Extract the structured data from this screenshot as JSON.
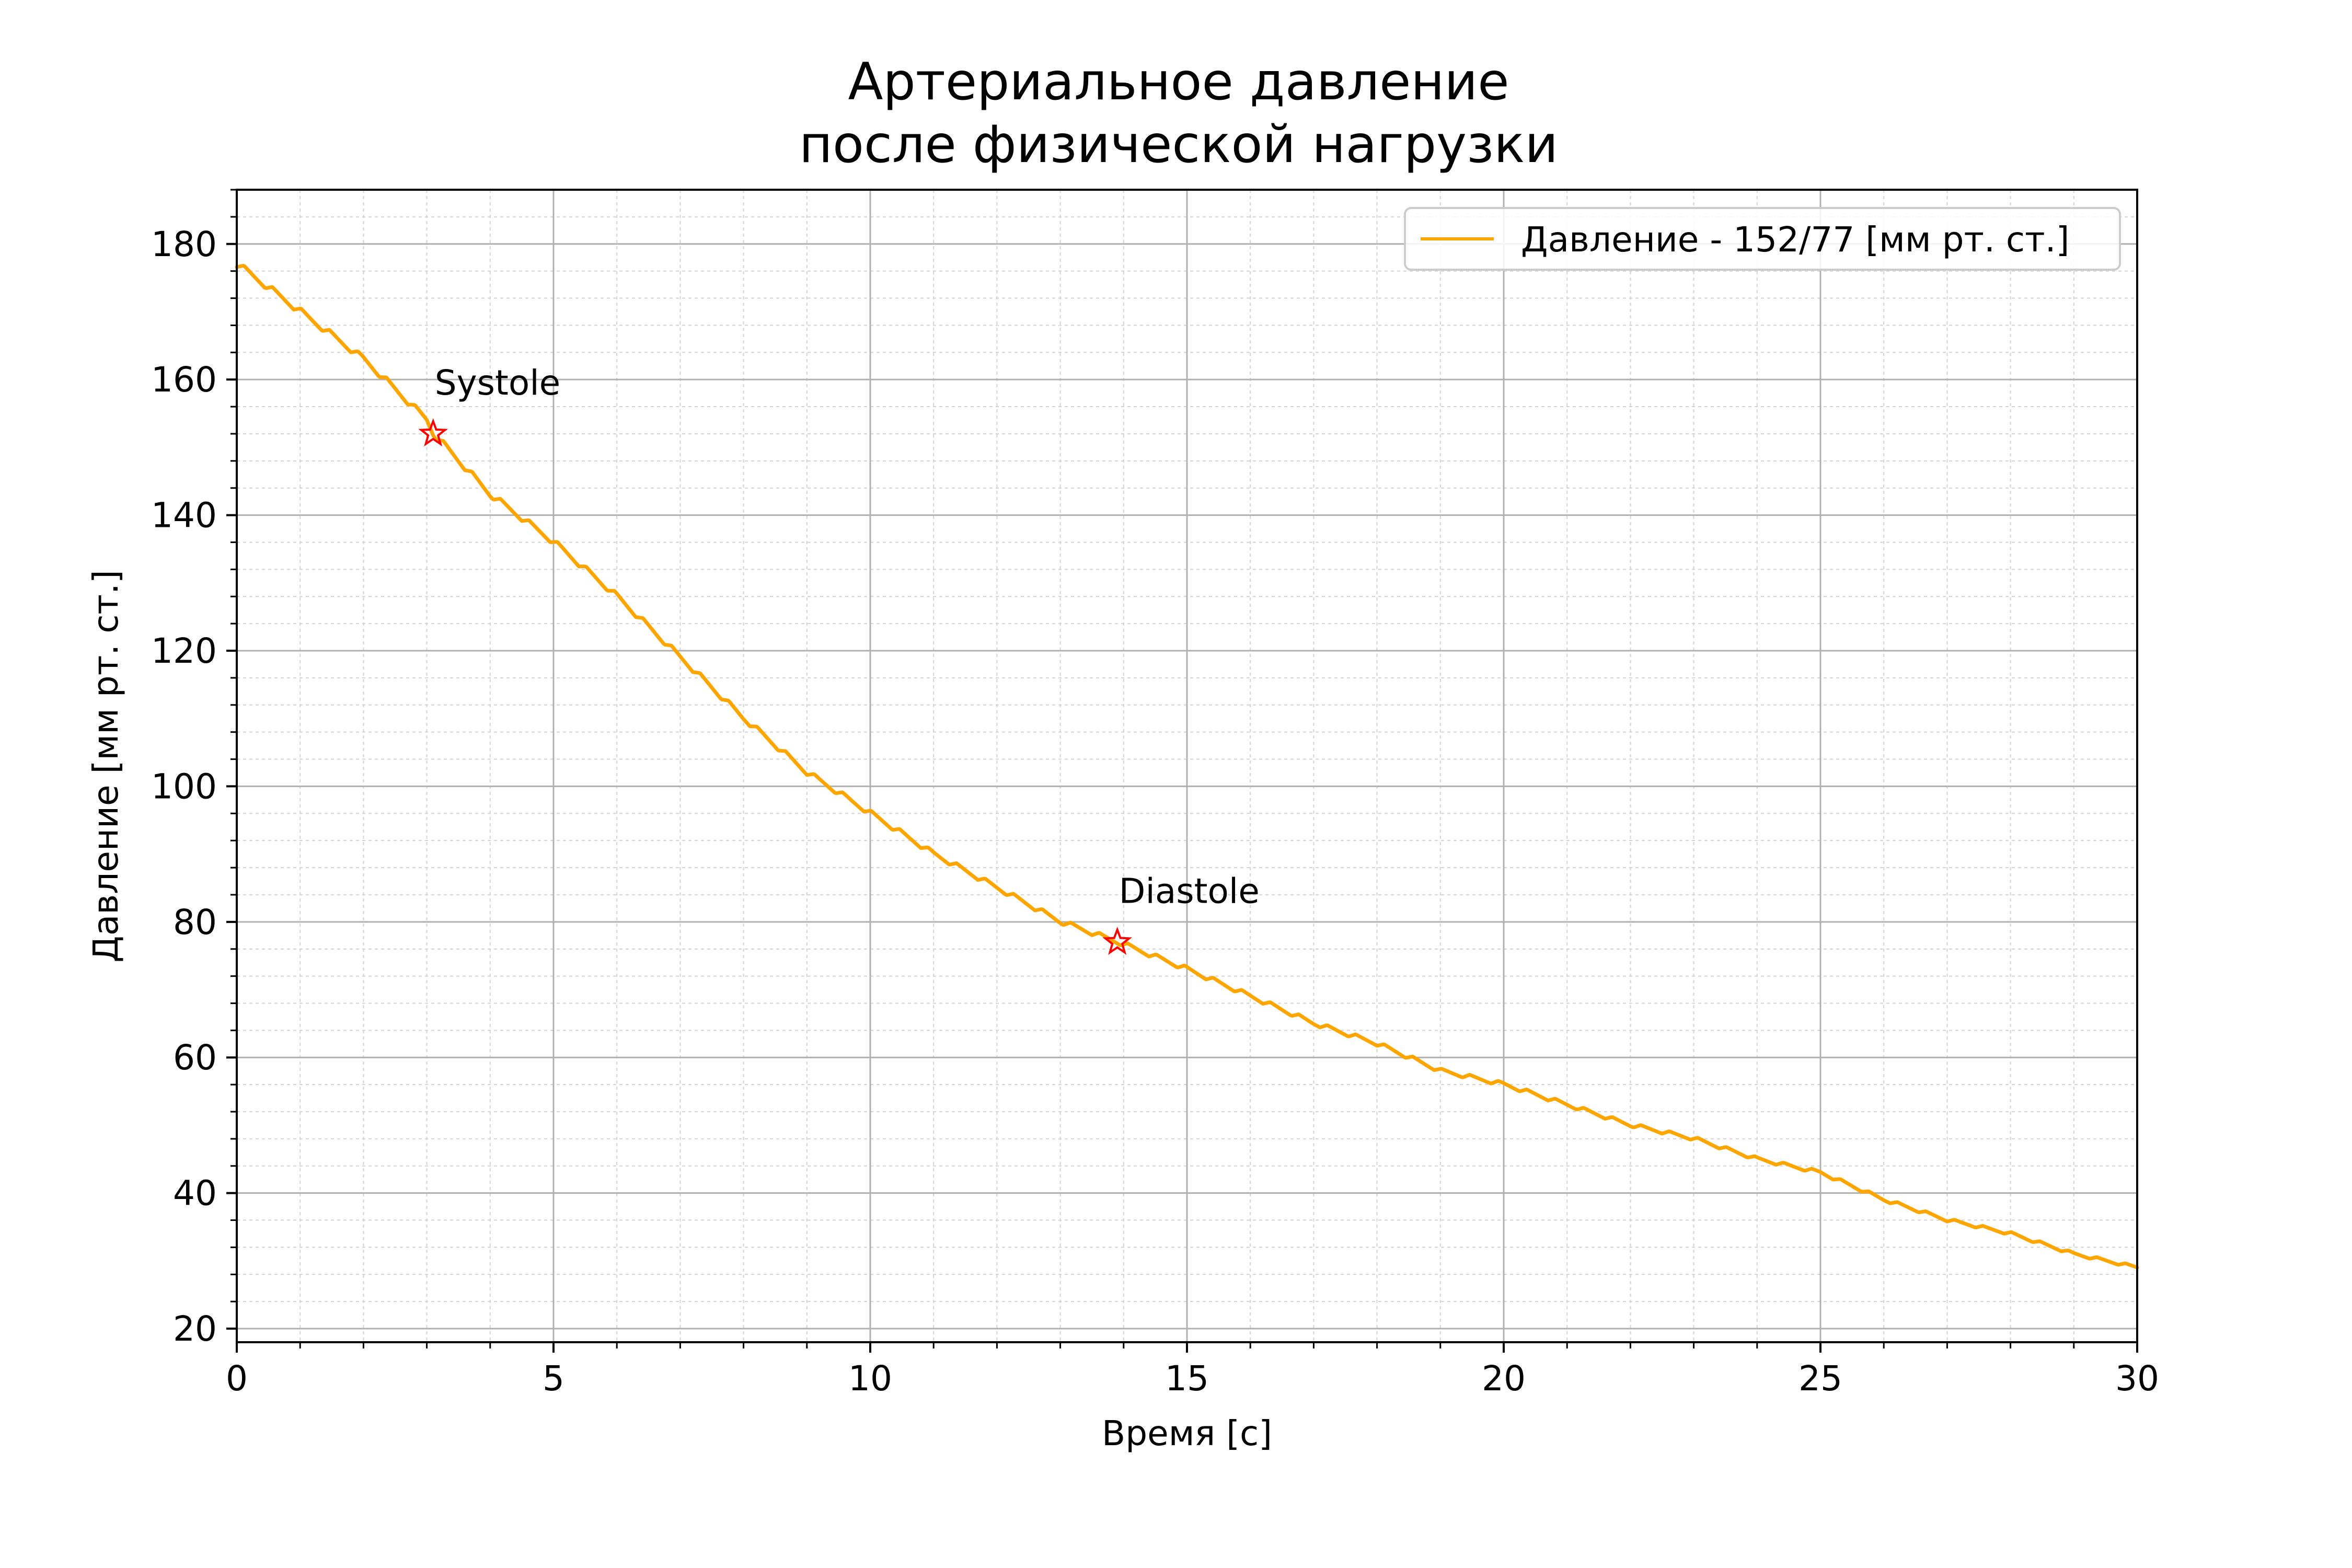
{
  "chart_data": {
    "type": "line",
    "title_lines": [
      "Артериальное давление",
      "после физической нагрузки"
    ],
    "xlabel": "Время [с]",
    "ylabel": "Давление [мм рт. ст.]",
    "xlim": [
      0,
      30
    ],
    "ylim": [
      18,
      188
    ],
    "x_ticks": [
      0,
      5,
      10,
      15,
      20,
      25,
      30
    ],
    "y_ticks": [
      20,
      40,
      60,
      80,
      100,
      120,
      140,
      160,
      180
    ],
    "x_minor_step": 1,
    "y_minor_step": 4,
    "grid": true,
    "minor_grid": true,
    "legend_position": "top-right",
    "series": [
      {
        "name": "Давление - 152/77 [мм рт. ст.]",
        "color": "#FFA500",
        "x": [
          0,
          1,
          2,
          3,
          3.1,
          4,
          5,
          6,
          7,
          8,
          9,
          10,
          11,
          12,
          13,
          13.9,
          15,
          16,
          17,
          18,
          19,
          20,
          21,
          22,
          23,
          24,
          25,
          26,
          27,
          28,
          29,
          30
        ],
        "y": [
          177,
          170,
          163,
          154,
          152,
          143,
          136,
          128,
          119,
          110,
          102,
          96,
          90,
          85,
          80,
          77,
          73,
          69,
          65,
          62,
          58,
          56,
          53,
          50,
          48,
          45,
          43,
          39,
          36,
          34,
          31,
          29
        ],
        "oscillation_amplitude": 1.0,
        "oscillation_period": 0.45
      }
    ],
    "annotations": [
      {
        "label": "Systole",
        "x": 3.1,
        "y": 152,
        "marker": "star",
        "marker_color": "#FF0000"
      },
      {
        "label": "Diastole",
        "x": 13.9,
        "y": 77,
        "marker": "star",
        "marker_color": "#FF0000"
      }
    ]
  }
}
